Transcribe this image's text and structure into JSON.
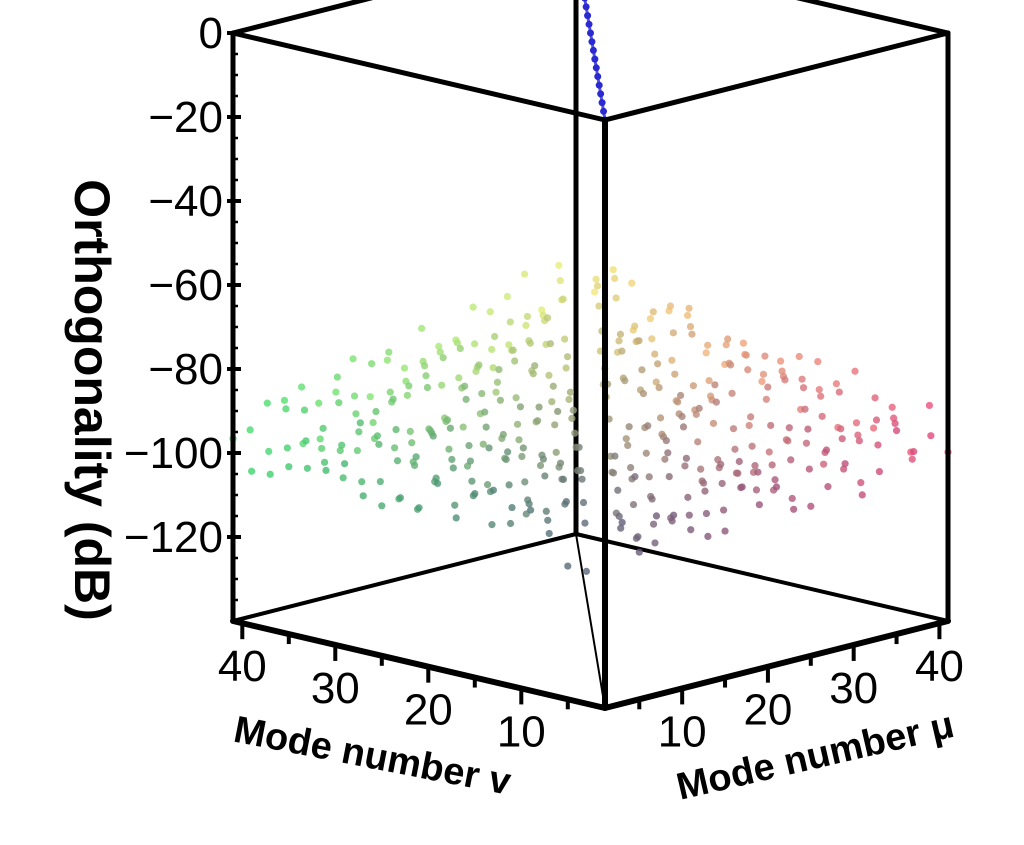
{
  "chart_data": {
    "type": "scatter",
    "subtype": "3d",
    "title": "",
    "zlabel": "Orthogonality (dB)",
    "xlabel": "Mode number μ",
    "ylabel": "Mode number v",
    "x_ticks": [
      "10",
      "20",
      "30",
      "40"
    ],
    "y_ticks": [
      "10",
      "20",
      "30",
      "40"
    ],
    "z_ticks": [
      "0",
      "−20",
      "−40",
      "−60",
      "−80",
      "−100",
      "−120"
    ],
    "xlim": [
      1,
      41
    ],
    "ylim": [
      1,
      41
    ],
    "zlim": [
      -140,
      0
    ],
    "grid_step": 2,
    "diagonal_value": 0,
    "off_diagonal_range": [
      -130,
      -75
    ],
    "grid": false,
    "legend": "none",
    "colors": {
      "box": "#000000",
      "low_mu_high_v": "#3ddc6e",
      "high_mu_low_v": "#e8497a",
      "high_both": "#f2ef7a",
      "low_both": "#5a5f7a",
      "diagonal": "#2a2ad0"
    }
  }
}
